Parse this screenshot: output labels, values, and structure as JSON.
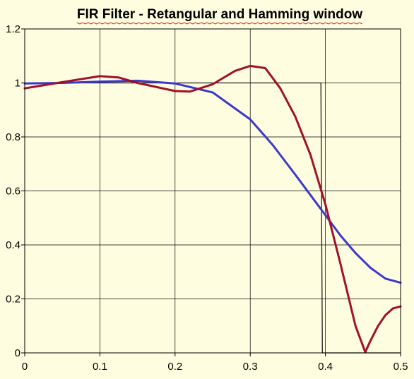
{
  "chart_data": {
    "type": "line",
    "title": "FIR Filter - Retangular and Hamming window",
    "xlim": [
      0,
      0.5
    ],
    "ylim": [
      0,
      1.2
    ],
    "x_ticks": [
      "0",
      "0.1",
      "0.2",
      "0.3",
      "0.4",
      "0.5"
    ],
    "y_ticks": [
      "0",
      "0.2",
      "0.4",
      "0.6",
      "0.8",
      "1",
      "1.2"
    ],
    "grid": true,
    "background_color": "#fffde0",
    "series": [
      {
        "color": "#1f1f1f",
        "points": [
          [
            0,
            1.0
          ],
          [
            0.394,
            1.0
          ],
          [
            0.396,
            0.0
          ],
          [
            0.5,
            0.0
          ]
        ]
      },
      {
        "color": "#3a3acc",
        "points": [
          [
            0,
            0.998
          ],
          [
            0.05,
            1.0
          ],
          [
            0.1,
            1.005
          ],
          [
            0.15,
            1.008
          ],
          [
            0.2,
            0.998
          ],
          [
            0.25,
            0.965
          ],
          [
            0.3,
            0.865
          ],
          [
            0.33,
            0.77
          ],
          [
            0.36,
            0.66
          ],
          [
            0.38,
            0.585
          ],
          [
            0.4,
            0.51
          ],
          [
            0.42,
            0.435
          ],
          [
            0.44,
            0.37
          ],
          [
            0.46,
            0.315
          ],
          [
            0.48,
            0.275
          ],
          [
            0.5,
            0.26
          ]
        ]
      },
      {
        "color": "#a0102a",
        "points": [
          [
            0,
            0.98
          ],
          [
            0.05,
            1.003
          ],
          [
            0.1,
            1.025
          ],
          [
            0.125,
            1.02
          ],
          [
            0.15,
            1.0
          ],
          [
            0.2,
            0.97
          ],
          [
            0.22,
            0.968
          ],
          [
            0.25,
            0.995
          ],
          [
            0.28,
            1.045
          ],
          [
            0.3,
            1.063
          ],
          [
            0.32,
            1.055
          ],
          [
            0.34,
            0.98
          ],
          [
            0.36,
            0.875
          ],
          [
            0.38,
            0.735
          ],
          [
            0.4,
            0.55
          ],
          [
            0.42,
            0.33
          ],
          [
            0.44,
            0.1
          ],
          [
            0.453,
            0.003
          ],
          [
            0.46,
            0.045
          ],
          [
            0.47,
            0.1
          ],
          [
            0.48,
            0.14
          ],
          [
            0.49,
            0.165
          ],
          [
            0.5,
            0.172
          ]
        ]
      }
    ]
  }
}
